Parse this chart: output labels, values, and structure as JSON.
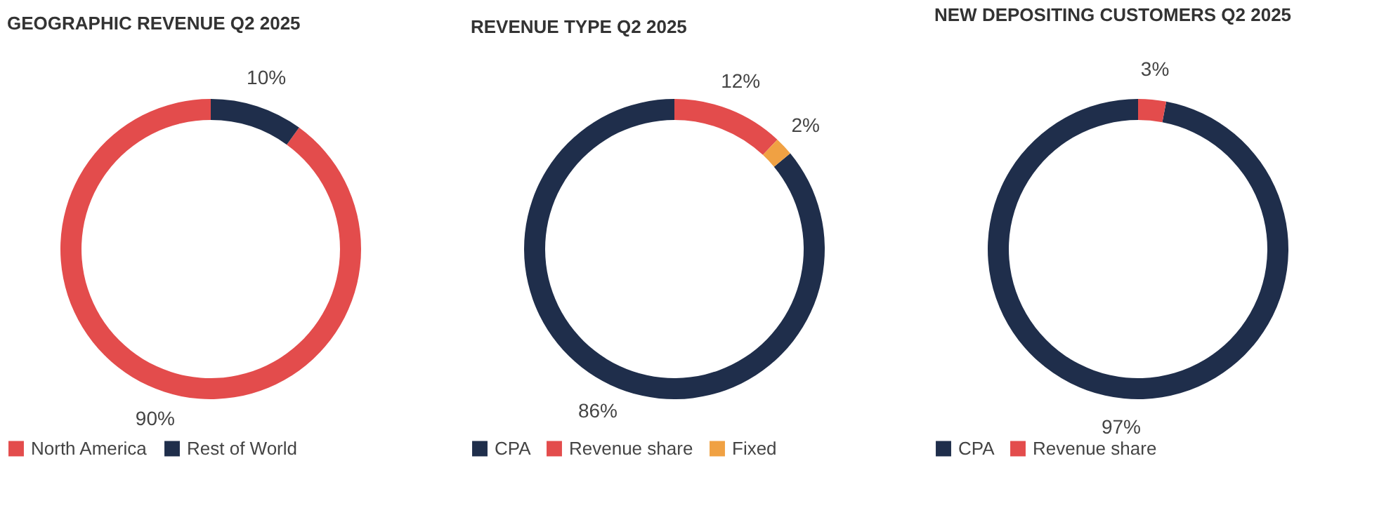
{
  "chart_data": [
    {
      "type": "donut",
      "title": "GEOGRAPHIC REVENUE Q2 2025",
      "categories": [
        "North America",
        "Rest of World"
      ],
      "values": [
        90,
        10
      ],
      "colors": [
        "#e34c4c",
        "#1f2e4b"
      ],
      "value_labels": [
        "90%",
        "10%"
      ],
      "legend": "bottom"
    },
    {
      "type": "donut",
      "title": "REVENUE TYPE Q2 2025",
      "categories": [
        "CPA",
        "Revenue share",
        "Fixed"
      ],
      "values": [
        86,
        12,
        2
      ],
      "colors": [
        "#1f2e4b",
        "#e34c4c",
        "#f0a143"
      ],
      "value_labels": [
        "86%",
        "12%",
        "2%"
      ],
      "legend": "bottom"
    },
    {
      "type": "donut",
      "title": "NEW DEPOSITING CUSTOMERS Q2 2025",
      "categories": [
        "CPA",
        "Revenue share"
      ],
      "values": [
        97,
        3
      ],
      "colors": [
        "#1f2e4b",
        "#e34c4c"
      ],
      "value_labels": [
        "97%",
        "3%"
      ],
      "legend": "bottom"
    }
  ]
}
